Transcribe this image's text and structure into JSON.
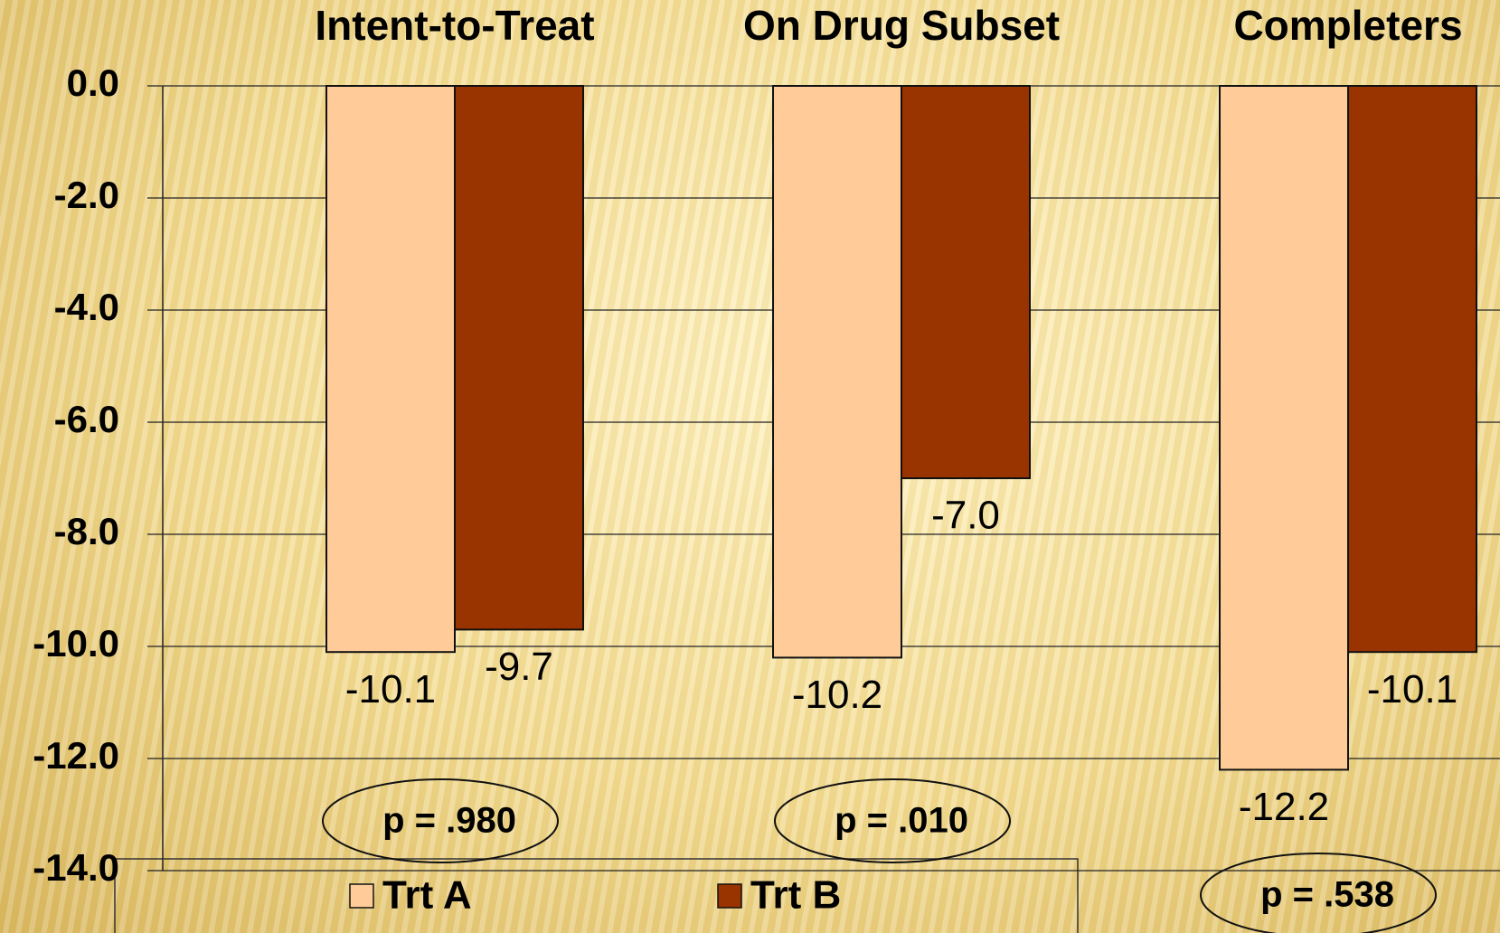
{
  "chart_data": {
    "type": "bar",
    "categories": [
      "Intent-to-Treat",
      "On Drug Subset",
      "Completers"
    ],
    "series": [
      {
        "name": "Trt A",
        "color": "#ffcc99",
        "values": [
          -10.1,
          -10.2,
          -12.2
        ],
        "value_labels": [
          "-10.1",
          "-10.2",
          "-12.2"
        ]
      },
      {
        "name": "Trt B",
        "color": "#993300",
        "values": [
          -9.7,
          -7.0,
          -10.1
        ],
        "value_labels": [
          "-9.7",
          "-7.0",
          "-10.1"
        ]
      }
    ],
    "ylim": [
      -14,
      0
    ],
    "yticks": [
      {
        "value": 0,
        "label": "0.0"
      },
      {
        "value": -2,
        "label": "-2.0"
      },
      {
        "value": -4,
        "label": "-4.0"
      },
      {
        "value": -6,
        "label": "-6.0"
      },
      {
        "value": -8,
        "label": "-8.0"
      },
      {
        "value": -10,
        "label": "-10.0"
      },
      {
        "value": -12,
        "label": "-12.0"
      },
      {
        "value": -14,
        "label": "-14.0"
      }
    ],
    "grid": true,
    "annotations": [
      "p = .980",
      "p = .010",
      "p = .538"
    ]
  }
}
